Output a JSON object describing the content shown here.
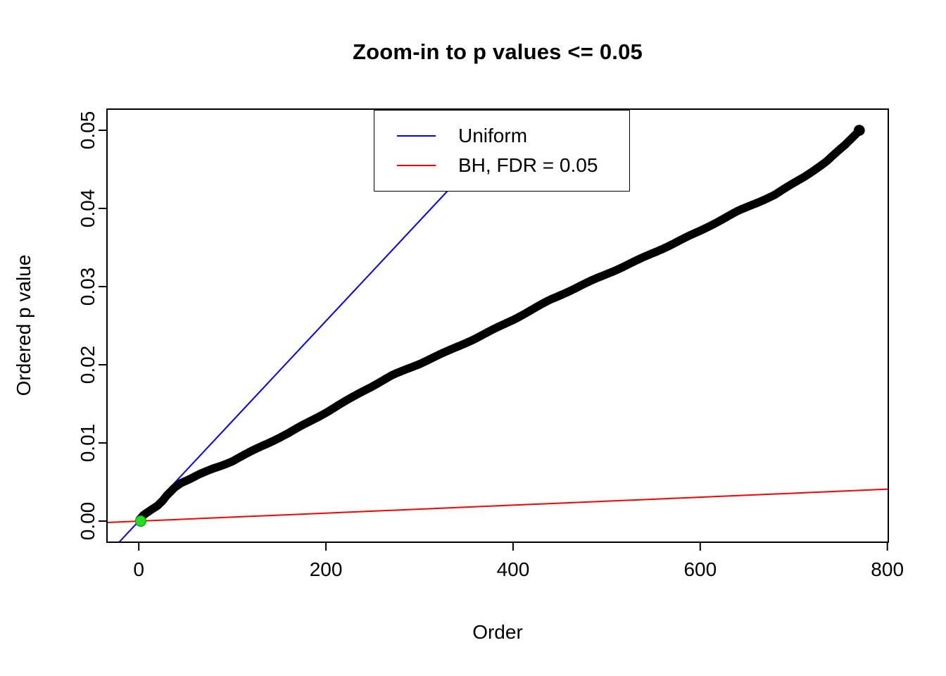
{
  "chart_data": {
    "type": "scatter",
    "title": "Zoom-in to p values <= 0.05",
    "xlabel": "Order",
    "ylabel": "Ordered p value",
    "x_range": [
      -34,
      801
    ],
    "y_range": [
      -0.0027,
      0.0527
    ],
    "x_ticks": {
      "values": [
        0,
        200,
        400,
        600,
        800
      ],
      "labels": [
        "0",
        "200",
        "400",
        "600",
        "800"
      ]
    },
    "y_ticks": {
      "values": [
        0.0,
        0.01,
        0.02,
        0.03,
        0.04,
        0.05
      ],
      "labels": [
        "0.00",
        "0.01",
        "0.02",
        "0.03",
        "0.04",
        "0.05"
      ]
    },
    "grid": false,
    "legend": {
      "position": "top-center",
      "items": [
        {
          "label": "Uniform",
          "color": "#0000FF"
        },
        {
          "label": "BH, FDR = 0.05",
          "color": "#FF0000"
        }
      ]
    },
    "lines": [
      {
        "name": "uniform",
        "color": "#0000FF",
        "slope": 0.000128,
        "intercept": 0
      },
      {
        "name": "bh-threshold",
        "color": "#FF0000",
        "slope": 5.1e-06,
        "intercept": 0
      }
    ],
    "scatter": {
      "name": "ordered-p-values",
      "color": "#000000",
      "marker": "open-circle",
      "n_points": 770,
      "jitter_amplitude": 9e-05,
      "control_points": [
        [
          1,
          0.0002
        ],
        [
          5,
          0.0007
        ],
        [
          10,
          0.0011
        ],
        [
          15,
          0.0015
        ],
        [
          20,
          0.0019
        ],
        [
          25,
          0.0025
        ],
        [
          30,
          0.0033
        ],
        [
          38,
          0.0043
        ],
        [
          45,
          0.0049
        ],
        [
          55,
          0.0054
        ],
        [
          65,
          0.006
        ],
        [
          80,
          0.0068
        ],
        [
          100,
          0.0077
        ],
        [
          130,
          0.0095
        ],
        [
          160,
          0.0112
        ],
        [
          200,
          0.0139
        ],
        [
          240,
          0.0167
        ],
        [
          270,
          0.0186
        ],
        [
          300,
          0.0201
        ],
        [
          330,
          0.0217
        ],
        [
          360,
          0.0234
        ],
        [
          400,
          0.0258
        ],
        [
          440,
          0.0283
        ],
        [
          480,
          0.0305
        ],
        [
          520,
          0.0327
        ],
        [
          560,
          0.0349
        ],
        [
          600,
          0.0371
        ],
        [
          640,
          0.0396
        ],
        [
          680,
          0.0418
        ],
        [
          710,
          0.044
        ],
        [
          735,
          0.046
        ],
        [
          755,
          0.0481
        ],
        [
          768,
          0.0497
        ],
        [
          770,
          0.05
        ]
      ]
    },
    "highlight_point": {
      "x": 2,
      "y": 0.0,
      "color": "#22DD22",
      "radius": 7.5
    }
  }
}
